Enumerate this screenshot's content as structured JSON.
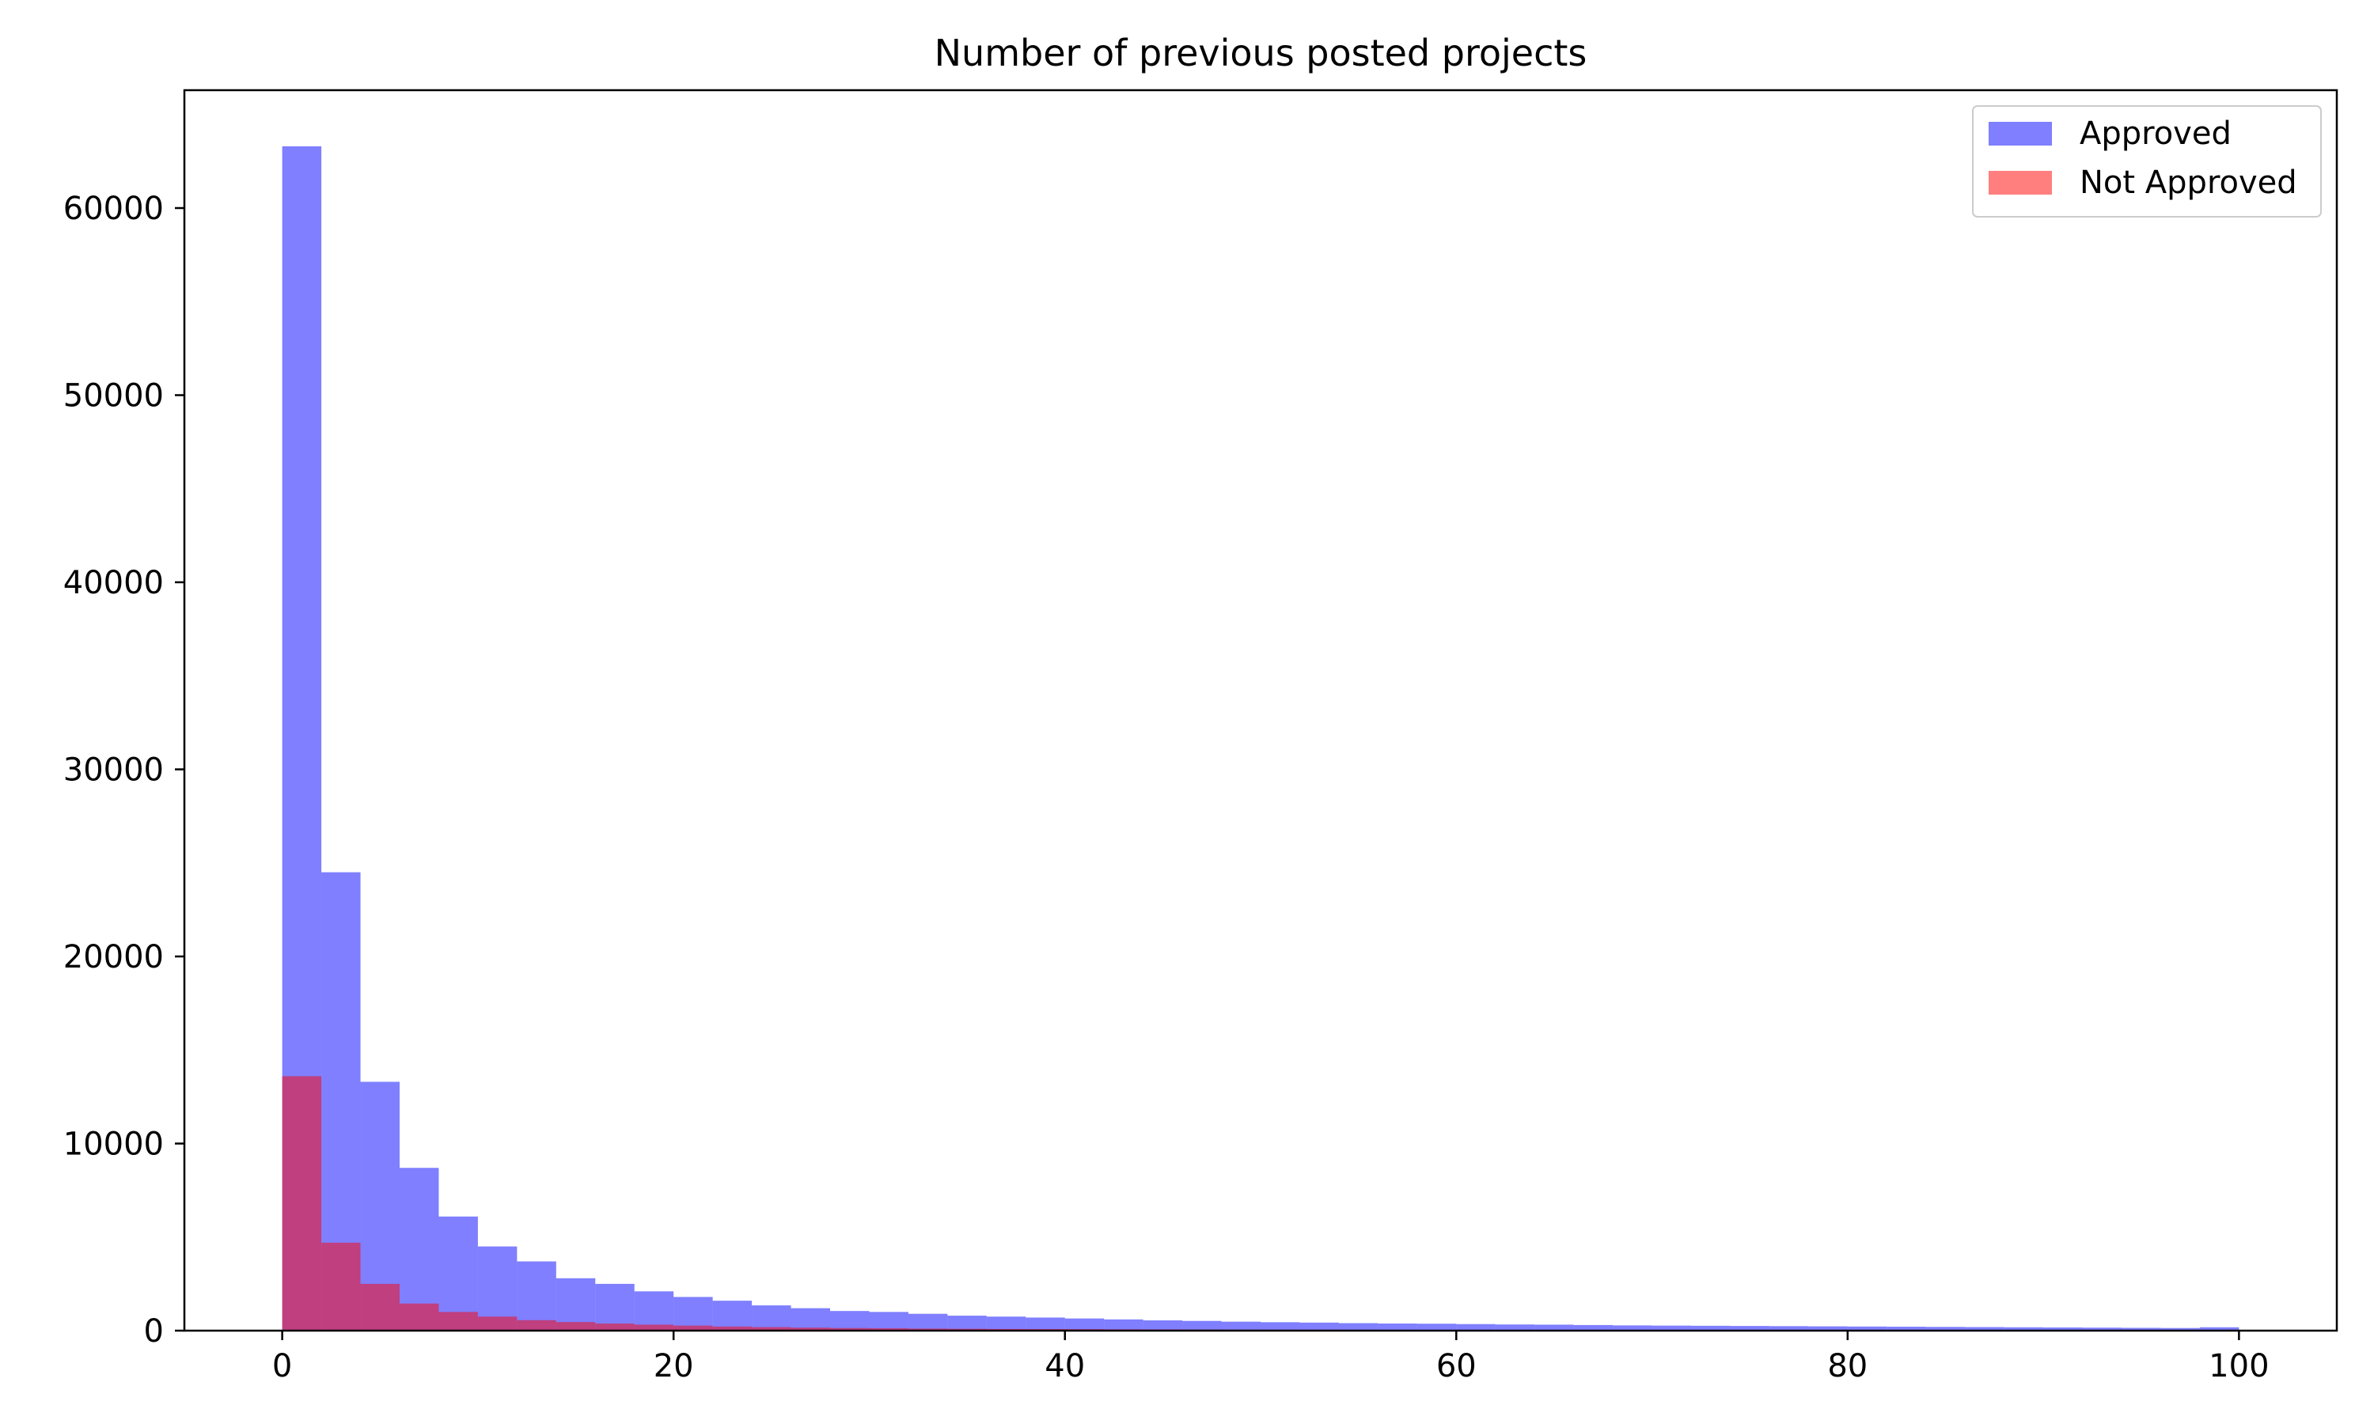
{
  "chart_data": {
    "type": "bar",
    "title": "Number of previous posted projects",
    "xlabel": "",
    "ylabel": "",
    "xlim": [
      -5,
      105
    ],
    "ylim": [
      0,
      66300
    ],
    "x_ticks": [
      0,
      20,
      40,
      60,
      80,
      100
    ],
    "y_ticks": [
      0,
      10000,
      20000,
      30000,
      40000,
      50000,
      60000
    ],
    "bin_edges": [
      0,
      2,
      4,
      6,
      8,
      10,
      12,
      14,
      16,
      18,
      20,
      22,
      24,
      26,
      28,
      30,
      32,
      34,
      36,
      38,
      40,
      42,
      44,
      46,
      48,
      50,
      52,
      54,
      56,
      58,
      60,
      62,
      64,
      66,
      68,
      70,
      72,
      74,
      76,
      78,
      80,
      82,
      84,
      86,
      88,
      90,
      92,
      94,
      96,
      98,
      100
    ],
    "legend_position": "top-right",
    "grid": false,
    "series": [
      {
        "name": "Approved",
        "color": "#0000ff",
        "opacity": 0.5,
        "values": [
          63300,
          24500,
          13300,
          8700,
          6100,
          4500,
          3700,
          2800,
          2500,
          2100,
          1800,
          1600,
          1350,
          1200,
          1050,
          1000,
          900,
          800,
          750,
          700,
          650,
          600,
          550,
          520,
          480,
          450,
          430,
          400,
          380,
          370,
          350,
          330,
          320,
          300,
          280,
          270,
          260,
          250,
          240,
          230,
          220,
          210,
          200,
          190,
          180,
          170,
          160,
          150,
          140,
          180
        ]
      },
      {
        "name": "Not Approved",
        "color": "#ff0000",
        "opacity": 0.5,
        "values": [
          13600,
          4700,
          2500,
          1450,
          1000,
          750,
          560,
          460,
          380,
          320,
          270,
          220,
          190,
          160,
          140,
          130,
          110,
          100,
          90,
          85,
          80,
          70,
          65,
          60,
          55,
          52,
          50,
          48,
          45,
          42,
          40,
          38,
          36,
          34,
          32,
          30,
          29,
          28,
          27,
          26,
          25,
          24,
          23,
          22,
          21,
          20,
          19,
          18,
          17,
          20
        ]
      }
    ]
  }
}
